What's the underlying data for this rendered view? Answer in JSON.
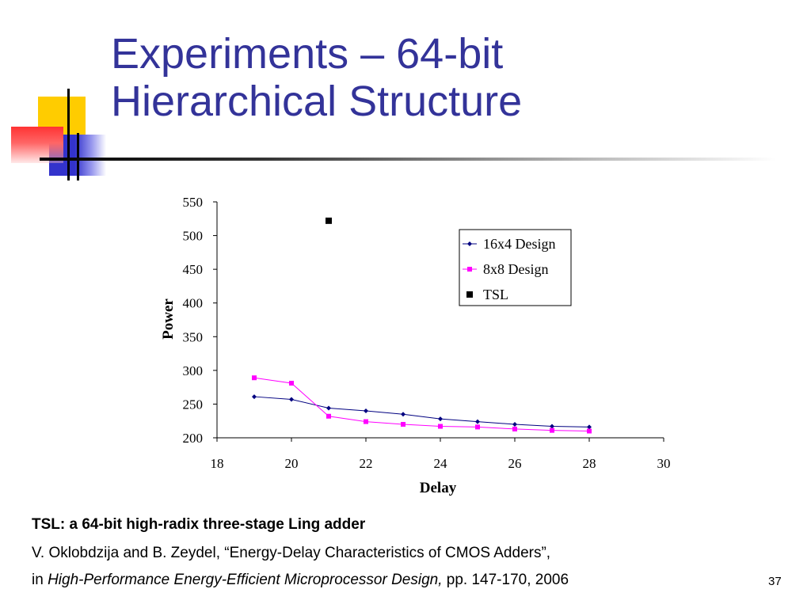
{
  "slide": {
    "title_line1": "Experiments – 64-bit",
    "title_line2": "Hierarchical Structure",
    "caption": "TSL: a 64-bit high-radix three-stage Ling adder",
    "reference": {
      "line1": "V. Oklobdzija and B. Zeydel, “Energy-Delay Characteristics of CMOS Adders”,",
      "line2_prefix": "in ",
      "line2_italic": "High-Performance Energy-Efficient Microprocessor Design,",
      "line2_suffix": " pp. 147-170, 2006"
    },
    "page_number": "37",
    "colors": {
      "title": "#333399",
      "deco_yellow": "#ffcc00",
      "deco_blue": "#3333cc",
      "deco_red": "#ff3333"
    }
  },
  "chart_data": {
    "type": "line",
    "xlabel": "Delay",
    "ylabel": "Power",
    "xlim": [
      18,
      30
    ],
    "ylim": [
      200,
      550
    ],
    "xticks": [
      18,
      20,
      22,
      24,
      26,
      28,
      30
    ],
    "yticks": [
      200,
      250,
      300,
      350,
      400,
      450,
      500,
      550
    ],
    "grid": false,
    "legend_position": "top-right",
    "series": [
      {
        "name": "16x4 Design",
        "marker": "diamond",
        "color": "#000080",
        "x": [
          19,
          20,
          21,
          22,
          23,
          24,
          25,
          26,
          27,
          28
        ],
        "y": [
          261,
          257,
          244,
          240,
          235,
          228,
          224,
          220,
          217,
          216
        ]
      },
      {
        "name": "8x8 Design",
        "marker": "square",
        "color": "#ff00ff",
        "x": [
          19,
          20,
          21,
          22,
          23,
          24,
          25,
          26,
          27,
          28
        ],
        "y": [
          289,
          281,
          232,
          224,
          220,
          217,
          216,
          213,
          211,
          210
        ]
      },
      {
        "name": "TSL",
        "marker": "square",
        "color": "#000000",
        "line": false,
        "x": [
          21
        ],
        "y": [
          522
        ]
      }
    ]
  }
}
